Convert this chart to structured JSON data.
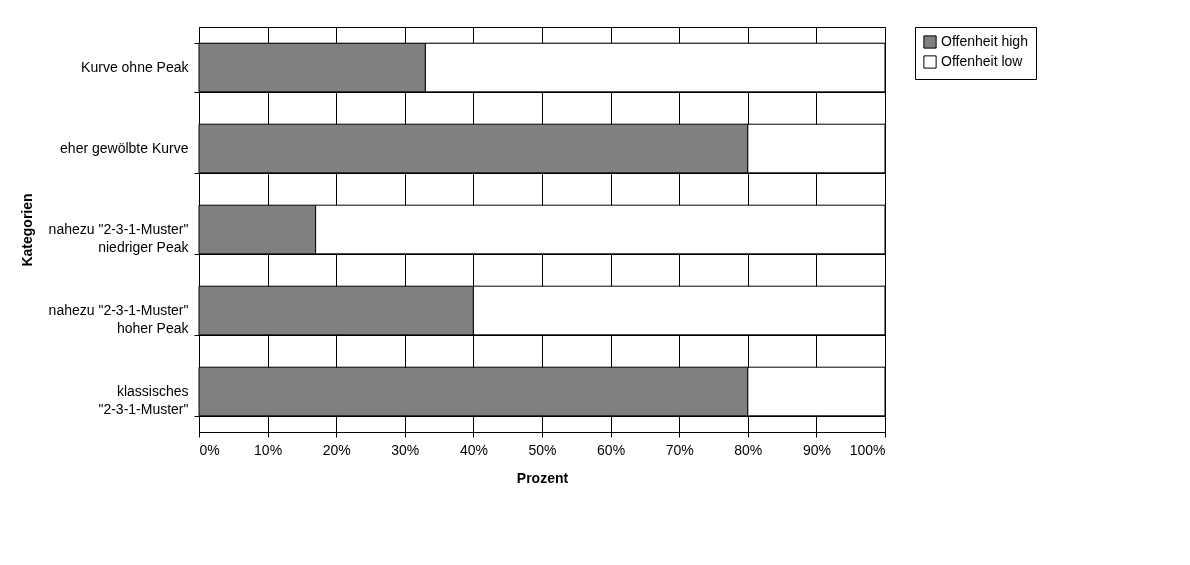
{
  "chart_data": {
    "type": "bar",
    "orientation": "horizontal",
    "stacked": true,
    "xlabel": "Prozent",
    "ylabel": "Kategorien",
    "categories": [
      "Kurve ohne Peak",
      "eher gewölbte Kurve",
      "nahezu \"2-3-1-Muster\" niedriger Peak",
      "nahezu \"2-3-1-Muster\" hoher Peak",
      "klassisches \"2-3-1-Muster\""
    ],
    "series": [
      {
        "name": "Offenheit high",
        "color": "#808080",
        "values": [
          33,
          80,
          17,
          40,
          80
        ]
      },
      {
        "name": "Offenheit low",
        "color": "#ffffff",
        "values": [
          67,
          20,
          83,
          60,
          20
        ]
      }
    ],
    "xlim": [
      0,
      100
    ],
    "xticks": [
      {
        "value": 0,
        "label": "0%"
      },
      {
        "value": 10,
        "label": "10%"
      },
      {
        "value": 20,
        "label": "20%"
      },
      {
        "value": 30,
        "label": "30%"
      },
      {
        "value": 40,
        "label": "40%"
      },
      {
        "value": 50,
        "label": "50%"
      },
      {
        "value": 60,
        "label": "60%"
      },
      {
        "value": 70,
        "label": "70%"
      },
      {
        "value": 80,
        "label": "80%"
      },
      {
        "value": 90,
        "label": "90%"
      },
      {
        "value": 100,
        "label": "100%"
      }
    ],
    "grid": true,
    "legend": "right"
  }
}
